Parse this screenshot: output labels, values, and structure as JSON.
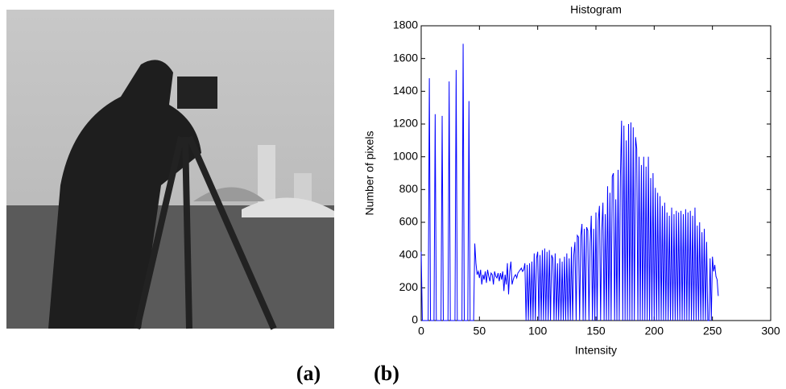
{
  "chart_data": {
    "type": "line",
    "title": "Histogram",
    "x_label": "Intensity",
    "y_label": "Number of pixels",
    "x": [
      0,
      1,
      2,
      3,
      4,
      5,
      6,
      7,
      8,
      9,
      10,
      11,
      12,
      13,
      14,
      15,
      16,
      17,
      18,
      19,
      20,
      21,
      22,
      23,
      24,
      25,
      26,
      27,
      28,
      29,
      30,
      31,
      32,
      33,
      34,
      35,
      36,
      37,
      38,
      39,
      40,
      41,
      42,
      43,
      44,
      45,
      46,
      47,
      48,
      49,
      50,
      51,
      52,
      53,
      54,
      55,
      56,
      57,
      58,
      59,
      60,
      61,
      62,
      63,
      64,
      65,
      66,
      67,
      68,
      69,
      70,
      71,
      72,
      73,
      74,
      75,
      76,
      77,
      78,
      79,
      80,
      81,
      82,
      83,
      84,
      85,
      86,
      87,
      88,
      89,
      90,
      91,
      92,
      93,
      94,
      95,
      96,
      97,
      98,
      99,
      100,
      101,
      102,
      103,
      104,
      105,
      106,
      107,
      108,
      109,
      110,
      111,
      112,
      113,
      114,
      115,
      116,
      117,
      118,
      119,
      120,
      121,
      122,
      123,
      124,
      125,
      126,
      127,
      128,
      129,
      130,
      131,
      132,
      133,
      134,
      135,
      136,
      137,
      138,
      139,
      140,
      141,
      142,
      143,
      144,
      145,
      146,
      147,
      148,
      149,
      150,
      151,
      152,
      153,
      154,
      155,
      156,
      157,
      158,
      159,
      160,
      161,
      162,
      163,
      164,
      165,
      166,
      167,
      168,
      169,
      170,
      171,
      172,
      173,
      174,
      175,
      176,
      177,
      178,
      179,
      180,
      181,
      182,
      183,
      184,
      185,
      186,
      187,
      188,
      189,
      190,
      191,
      192,
      193,
      194,
      195,
      196,
      197,
      198,
      199,
      200,
      201,
      202,
      203,
      204,
      205,
      206,
      207,
      208,
      209,
      210,
      211,
      212,
      213,
      214,
      215,
      216,
      217,
      218,
      219,
      220,
      221,
      222,
      223,
      224,
      225,
      226,
      227,
      228,
      229,
      230,
      231,
      232,
      233,
      234,
      235,
      236,
      237,
      238,
      239,
      240,
      241,
      242,
      243,
      244,
      245,
      246,
      247,
      248,
      249,
      250,
      251,
      252,
      253,
      254,
      255
    ],
    "values": [
      420,
      0,
      0,
      0,
      0,
      0,
      0,
      1480,
      0,
      0,
      0,
      0,
      1260,
      0,
      0,
      0,
      0,
      0,
      1250,
      0,
      0,
      0,
      0,
      0,
      1460,
      0,
      0,
      0,
      0,
      0,
      1530,
      0,
      0,
      0,
      0,
      0,
      1690,
      0,
      0,
      0,
      0,
      1340,
      0,
      0,
      0,
      0,
      470,
      350,
      280,
      300,
      260,
      310,
      220,
      280,
      250,
      300,
      230,
      310,
      270,
      240,
      290,
      280,
      220,
      300,
      270,
      260,
      290,
      240,
      290,
      250,
      300,
      180,
      280,
      220,
      350,
      160,
      300,
      360,
      220,
      250,
      270,
      280,
      260,
      290,
      300,
      310,
      320,
      300,
      310,
      350,
      0,
      340,
      0,
      350,
      0,
      360,
      0,
      410,
      0,
      380,
      420,
      0,
      400,
      0,
      430,
      0,
      440,
      0,
      420,
      0,
      430,
      0,
      400,
      380,
      0,
      410,
      0,
      350,
      0,
      380,
      0,
      360,
      0,
      390,
      0,
      410,
      0,
      380,
      0,
      450,
      0,
      400,
      480,
      0,
      520,
      510,
      0,
      520,
      590,
      0,
      560,
      0,
      570,
      550,
      0,
      470,
      640,
      0,
      560,
      0,
      660,
      0,
      610,
      700,
      0,
      550,
      720,
      0,
      650,
      0,
      820,
      0,
      780,
      0,
      880,
      900,
      0,
      740,
      0,
      920,
      0,
      880,
      1220,
      0,
      1190,
      0,
      1100,
      0,
      1200,
      0,
      1210,
      0,
      1180,
      0,
      1120,
      1050,
      0,
      1000,
      0,
      950,
      0,
      1000,
      0,
      940,
      0,
      1000,
      0,
      870,
      0,
      900,
      0,
      810,
      0,
      780,
      0,
      760,
      0,
      700,
      0,
      720,
      0,
      660,
      0,
      640,
      0,
      690,
      0,
      650,
      0,
      670,
      0,
      660,
      0,
      670,
      0,
      650,
      0,
      680,
      0,
      660,
      0,
      670,
      0,
      640,
      0,
      690,
      0,
      580,
      0,
      600,
      0,
      540,
      0,
      560,
      0,
      480,
      0,
      0,
      380,
      0,
      390,
      300,
      340,
      270,
      250,
      150
    ],
    "color": "#0000ff",
    "xlim": [
      0,
      300
    ],
    "xticks": [
      0,
      50,
      100,
      150,
      200,
      250,
      300
    ],
    "ylim": [
      0,
      1800
    ],
    "yticks": [
      0,
      200,
      400,
      600,
      800,
      1000,
      1200,
      1400,
      1600,
      1800
    ],
    "grid": false
  },
  "captions": [
    "(a)",
    "(b)"
  ]
}
